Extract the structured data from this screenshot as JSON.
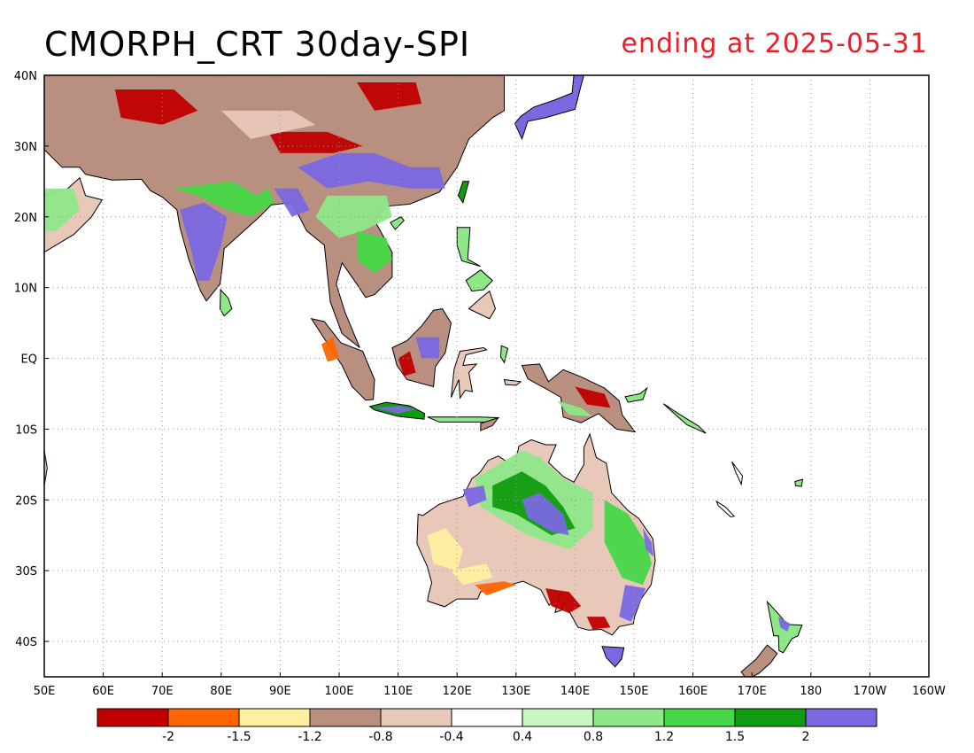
{
  "title": "CMORPH_CRT 30day-SPI",
  "subtitle": "ending at 2025-05-31",
  "colors": {
    "title": "#000000",
    "subtitle": "#e8202a",
    "coast": "#000000",
    "grid": "#9a9a9a",
    "ocean": "#ffffff"
  },
  "map": {
    "lon_labels": [
      "50E",
      "60E",
      "70E",
      "80E",
      "90E",
      "100E",
      "110E",
      "120E",
      "130E",
      "140E",
      "150E",
      "160E",
      "170E",
      "180",
      "170W",
      "160W"
    ],
    "lat_labels": [
      "40N",
      "30N",
      "20N",
      "10N",
      "EQ",
      "10S",
      "20S",
      "30S",
      "40S"
    ],
    "lon_range": [
      50,
      200
    ],
    "lat_range": [
      -45,
      40
    ]
  },
  "legend": {
    "colors": [
      "#c00000",
      "#ff6600",
      "#fff0a0",
      "#b99080",
      "#e8c8b8",
      "#ffffff",
      "#c8f8c0",
      "#8ee888",
      "#46d846",
      "#109c10",
      "#7a68e0"
    ],
    "tick_labels": [
      "-2",
      "-1.5",
      "-1.2",
      "-0.8",
      "-0.4",
      "0.4",
      "0.8",
      "1.2",
      "1.5",
      "2"
    ]
  }
}
